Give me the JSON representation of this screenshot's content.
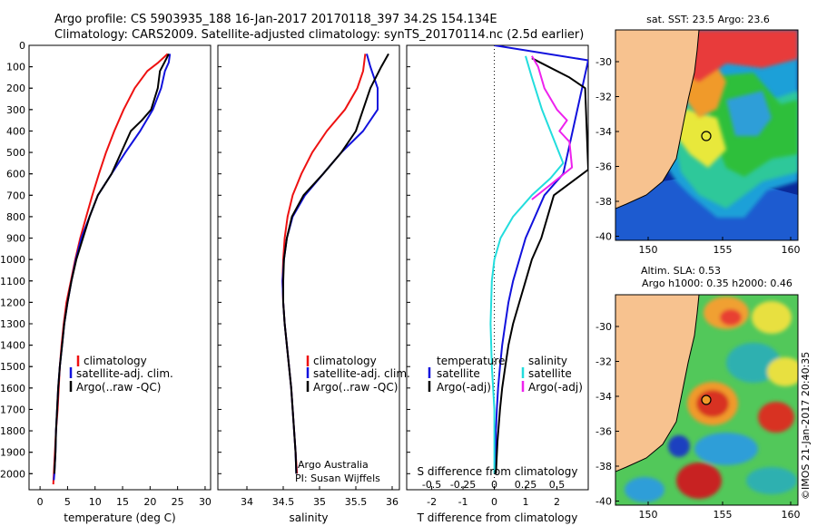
{
  "header": {
    "line1": "Argo profile: CS 5903935_188 16-Jan-2017 20170118_397 34.2S 154.134E",
    "line2": "Climatology: CARS2009. Satellite-adjusted climatology: synTS_20170114.nc (2.5d earlier)"
  },
  "colors": {
    "climatology": "#ee1111",
    "satellite": "#1111dd",
    "argo": "#000000",
    "salinity_sat": "#22dddd",
    "salinity_argo": "#ee22ee"
  },
  "chart_data": [
    {
      "type": "line",
      "id": "temperature",
      "xlabel": "temperature (deg C)",
      "ylabel": "",
      "xlim": [
        -2,
        31
      ],
      "ylim": [
        2075,
        0
      ],
      "xticks": [
        0,
        5,
        10,
        15,
        20,
        25,
        30
      ],
      "yticks": [
        0,
        100,
        200,
        300,
        400,
        500,
        600,
        700,
        800,
        900,
        1000,
        1100,
        1200,
        1300,
        1400,
        1500,
        1600,
        1700,
        1800,
        1900,
        2000
      ],
      "legend": [
        "climatology",
        "satellite-adj. clim.",
        "Argo(..raw -QC)"
      ],
      "series": [
        {
          "name": "climatology",
          "x": [
            23.2,
            21.5,
            19.5,
            17.2,
            15.2,
            13.5,
            12,
            10.7,
            9.5,
            8.4,
            7.3,
            6.4,
            5.6,
            4.8,
            4.3,
            3.9,
            3.6,
            3.4,
            3.2,
            2.9,
            2.7,
            2.5,
            2.4
          ],
          "y": [
            40,
            80,
            120,
            200,
            300,
            400,
            500,
            600,
            700,
            800,
            900,
            1000,
            1100,
            1200,
            1300,
            1400,
            1500,
            1600,
            1700,
            1800,
            1900,
            2000,
            2050
          ]
        },
        {
          "name": "satellite-adj. clim.",
          "x": [
            23.6,
            23.4,
            22.7,
            22,
            20.5,
            18.2,
            15.5,
            13,
            10.5,
            9,
            7.5,
            6.5,
            5.7,
            5,
            4.4,
            4,
            3.6,
            3.3,
            3.1,
            2.9,
            2.8,
            2.6,
            2.5
          ],
          "y": [
            40,
            80,
            120,
            200,
            300,
            400,
            500,
            600,
            700,
            800,
            900,
            1000,
            1100,
            1200,
            1300,
            1400,
            1500,
            1600,
            1700,
            1800,
            1900,
            2000,
            2030
          ]
        },
        {
          "name": "Argo(..raw -QC)",
          "x": [
            23.4,
            22.6,
            21.8,
            21.4,
            20.2,
            18.5,
            16.5,
            13,
            10.5,
            9,
            7.8,
            6.6,
            5.7,
            5,
            4.4,
            4,
            3.6,
            3.3,
            3.1,
            2.9,
            2.8,
            2.6
          ],
          "y": [
            40,
            80,
            120,
            200,
            300,
            350,
            400,
            600,
            700,
            800,
            900,
            1000,
            1100,
            1200,
            1300,
            1400,
            1500,
            1600,
            1700,
            1800,
            1900,
            2000
          ]
        }
      ]
    },
    {
      "type": "line",
      "id": "salinity",
      "xlabel": "salinity",
      "ylabel": "",
      "xlim": [
        33.6,
        36.1
      ],
      "ylim": [
        2075,
        0
      ],
      "xticks": [
        34,
        34.5,
        35,
        35.5,
        36
      ],
      "legend": [
        "climatology",
        "satellite-adj. clim.",
        "Argo(..raw -QC)"
      ],
      "annotation": [
        "Argo Australia",
        "PI: Susan Wijffels"
      ],
      "series": [
        {
          "name": "climatology",
          "x": [
            35.63,
            35.6,
            35.52,
            35.35,
            35.1,
            34.9,
            34.75,
            34.63,
            34.56,
            34.52,
            34.5,
            34.49,
            34.5,
            34.52,
            34.55,
            34.58,
            34.61,
            34.63,
            34.65,
            34.67,
            34.69
          ],
          "y": [
            40,
            120,
            200,
            300,
            400,
            500,
            600,
            700,
            800,
            900,
            1000,
            1100,
            1200,
            1300,
            1400,
            1500,
            1600,
            1700,
            1800,
            1900,
            2000
          ]
        },
        {
          "name": "satellite-adj. clim.",
          "x": [
            35.65,
            35.7,
            35.8,
            35.8,
            35.6,
            35.3,
            35.05,
            34.8,
            34.63,
            34.55,
            34.51,
            34.49,
            34.5,
            34.52,
            34.55,
            34.58,
            34.61,
            34.63,
            34.65,
            34.67,
            34.68
          ],
          "y": [
            40,
            100,
            200,
            300,
            400,
            500,
            600,
            700,
            800,
            900,
            1000,
            1100,
            1200,
            1300,
            1400,
            1500,
            1600,
            1700,
            1800,
            1900,
            2000
          ]
        },
        {
          "name": "Argo(..raw -QC)",
          "x": [
            35.95,
            35.85,
            35.7,
            35.6,
            35.5,
            35.3,
            35.05,
            34.78,
            34.62,
            34.55,
            34.51,
            34.5,
            34.5,
            34.52,
            34.55,
            34.58,
            34.61,
            34.63,
            34.65,
            34.67,
            34.68
          ],
          "y": [
            40,
            100,
            200,
            300,
            400,
            500,
            600,
            700,
            800,
            900,
            1000,
            1100,
            1200,
            1300,
            1400,
            1500,
            1600,
            1700,
            1800,
            1900,
            2000
          ]
        }
      ]
    },
    {
      "type": "line",
      "id": "difference",
      "xlabel": "T difference from climatology",
      "xlabel_top": "S difference from climatology",
      "xlim": [
        -2.8,
        3.0
      ],
      "ylim": [
        2075,
        0
      ],
      "xticks": [
        -2,
        -1,
        0,
        1,
        2
      ],
      "sticks": [
        -0.5,
        -0.25,
        0,
        0.25,
        0.5
      ],
      "legend_t": [
        "temperature",
        "satellite",
        "Argo(-adj)"
      ],
      "legend_s": [
        "salinity",
        "satellite",
        "Argo(-adj)"
      ],
      "series": [
        {
          "name": "satellite",
          "kind": "T",
          "x": [
            0,
            3,
            2.2,
            1.6,
            1.3,
            1.0,
            0.8,
            0.6,
            0.45,
            0.35,
            0.25,
            0.18,
            0.12,
            0.08,
            0.05,
            0.04
          ],
          "y": [
            0,
            70,
            600,
            700,
            800,
            900,
            1000,
            1100,
            1200,
            1300,
            1400,
            1500,
            1600,
            1700,
            1800,
            2000
          ]
        },
        {
          "name": "Argo(-adj)",
          "kind": "T",
          "x": [
            1.2,
            2.4,
            2.9,
            3.0,
            1.9,
            1.5,
            1.2,
            1.0,
            0.8,
            0.6,
            0.45,
            0.35,
            0.25,
            0.18,
            0.1,
            0.05
          ],
          "y": [
            60,
            150,
            200,
            580,
            700,
            900,
            1000,
            1100,
            1200,
            1300,
            1400,
            1500,
            1600,
            1700,
            1850,
            2000
          ]
        },
        {
          "name": "satellite",
          "kind": "S",
          "x": [
            0.25,
            0.3,
            0.38,
            0.55,
            0.45,
            0.3,
            0.15,
            0.05,
            0,
            -0.02,
            -0.03,
            -0.02,
            0,
            0
          ],
          "y": [
            50,
            150,
            300,
            550,
            620,
            700,
            800,
            900,
            1000,
            1100,
            1300,
            1500,
            1700,
            2000
          ]
        },
        {
          "name": "Argo(-adj)",
          "kind": "S",
          "x": [
            0.3,
            0.35,
            0.4,
            0.5,
            0.58,
            0.52,
            0.6,
            0.62,
            0.45,
            0.3
          ],
          "y": [
            50,
            100,
            200,
            300,
            350,
            400,
            450,
            570,
            650,
            720
          ]
        }
      ]
    }
  ],
  "maps": {
    "sst": {
      "title": "sat. SST: 23.5 Argo: 23.6",
      "xticks": [
        "150",
        "155",
        "160"
      ],
      "yticks": [
        "-30",
        "-32",
        "-34",
        "-36",
        "-38",
        "-40"
      ]
    },
    "sla": {
      "title1": "Altim. SLA: 0.53",
      "title2": "Argo h1000: 0.35 h2000: 0.46",
      "xticks": [
        "150",
        "155",
        "160"
      ],
      "yticks": [
        "-30",
        "-32",
        "-34",
        "-36",
        "-38",
        "-40"
      ]
    }
  },
  "watermark": "©IMOS 21-Jan-2017 20:40:35"
}
